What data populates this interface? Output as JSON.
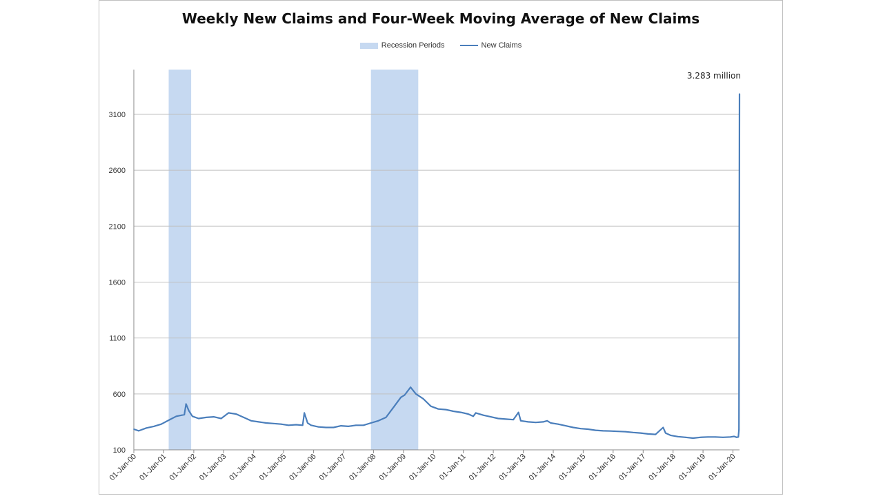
{
  "chart_data": {
    "type": "line",
    "title": "Weekly New Claims and Four-Week Moving Average of New Claims",
    "legend": [
      {
        "name": "Recession Periods",
        "kind": "box",
        "color": "#c6d9f1"
      },
      {
        "name": "New Claims",
        "kind": "line",
        "color": "#4a7ebb"
      }
    ],
    "legend_position": "top-center",
    "ylim": [
      100,
      3500
    ],
    "y_ticks": [
      100,
      600,
      1100,
      1600,
      2100,
      2600,
      3100
    ],
    "y_tick_labels": [
      "100",
      "600",
      "1100",
      "1600",
      "2100",
      "2600",
      "3100"
    ],
    "xlim": [
      "2000-01-01",
      "2020-03-21"
    ],
    "x_tick_dates": [
      "2000-01-01",
      "2001-01-01",
      "2002-01-01",
      "2003-01-01",
      "2004-01-01",
      "2005-01-01",
      "2006-01-01",
      "2007-01-01",
      "2008-01-01",
      "2009-01-01",
      "2010-01-01",
      "2011-01-01",
      "2012-01-01",
      "2013-01-01",
      "2014-01-01",
      "2015-01-01",
      "2016-01-01",
      "2017-01-01",
      "2018-01-01",
      "2019-01-01",
      "2020-01-01"
    ],
    "x_tick_labels": [
      "01-Jan-00",
      "01-Jan-01",
      "01-Jan-02",
      "01-Jan-03",
      "01-Jan-04",
      "01-Jan-05",
      "01-Jan-06",
      "01-Jan-07",
      "01-Jan-08",
      "01-Jan-09",
      "01-Jan-10",
      "01-Jan-11",
      "01-Jan-12",
      "01-Jan-13",
      "01-Jan-14",
      "01-Jan-15",
      "01-Jan-16",
      "01-Jan-17",
      "01-Jan-18",
      "01-Jan-19",
      "01-Jan-20"
    ],
    "grid": "horizontal",
    "recessions": [
      {
        "start": "2001-03-01",
        "end": "2001-11-30"
      },
      {
        "start": "2007-12-01",
        "end": "2009-06-30"
      }
    ],
    "series": [
      {
        "name": "New Claims",
        "color": "#4a7ebb",
        "x": [
          "2000-01-01",
          "2000-03-01",
          "2000-06-01",
          "2000-09-01",
          "2000-12-01",
          "2001-03-01",
          "2001-06-01",
          "2001-09-08",
          "2001-09-29",
          "2001-11-01",
          "2001-12-15",
          "2002-03-01",
          "2002-06-01",
          "2002-09-01",
          "2002-12-01",
          "2003-03-01",
          "2003-06-01",
          "2003-09-01",
          "2003-12-01",
          "2004-03-01",
          "2004-06-01",
          "2004-09-01",
          "2004-12-01",
          "2005-03-01",
          "2005-06-01",
          "2005-08-20",
          "2005-09-10",
          "2005-10-20",
          "2005-12-01",
          "2006-03-01",
          "2006-06-01",
          "2006-09-01",
          "2006-12-01",
          "2007-03-01",
          "2007-06-01",
          "2007-09-01",
          "2007-12-01",
          "2008-03-01",
          "2008-06-01",
          "2008-09-01",
          "2008-12-01",
          "2009-01-15",
          "2009-03-28",
          "2009-06-01",
          "2009-09-01",
          "2009-12-01",
          "2010-03-01",
          "2010-06-01",
          "2010-09-01",
          "2010-12-01",
          "2011-03-01",
          "2011-05-01",
          "2011-06-01",
          "2011-09-01",
          "2011-12-01",
          "2012-03-01",
          "2012-06-01",
          "2012-09-01",
          "2012-11-03",
          "2012-12-01",
          "2013-03-01",
          "2013-06-01",
          "2013-09-01",
          "2013-10-19",
          "2013-12-01",
          "2014-03-01",
          "2014-06-01",
          "2014-09-01",
          "2014-12-01",
          "2015-03-01",
          "2015-06-01",
          "2015-09-01",
          "2015-12-01",
          "2016-03-01",
          "2016-06-01",
          "2016-09-01",
          "2016-12-01",
          "2017-03-01",
          "2017-06-01",
          "2017-09-02",
          "2017-10-01",
          "2017-12-01",
          "2018-03-01",
          "2018-06-01",
          "2018-09-01",
          "2018-12-01",
          "2019-03-01",
          "2019-06-01",
          "2019-09-01",
          "2019-12-01",
          "2020-01-15",
          "2020-02-15",
          "2020-03-07",
          "2020-03-14",
          "2020-03-21"
        ],
        "values": [
          285,
          270,
          295,
          310,
          330,
          365,
          400,
          415,
          510,
          450,
          400,
          380,
          390,
          395,
          380,
          430,
          420,
          390,
          360,
          350,
          340,
          335,
          330,
          320,
          325,
          320,
          430,
          340,
          320,
          305,
          300,
          300,
          315,
          310,
          320,
          320,
          340,
          360,
          390,
          480,
          570,
          590,
          660,
          600,
          555,
          490,
          465,
          460,
          445,
          435,
          420,
          400,
          430,
          410,
          395,
          380,
          375,
          370,
          435,
          360,
          350,
          345,
          350,
          360,
          340,
          330,
          315,
          300,
          290,
          285,
          275,
          270,
          268,
          265,
          262,
          255,
          250,
          242,
          238,
          300,
          250,
          230,
          218,
          212,
          205,
          212,
          215,
          215,
          212,
          215,
          220,
          212,
          215,
          280,
          3283
        ]
      }
    ],
    "annotations": [
      {
        "text": "3.283 million",
        "x": "2020-03-21",
        "y": 3283
      }
    ]
  }
}
